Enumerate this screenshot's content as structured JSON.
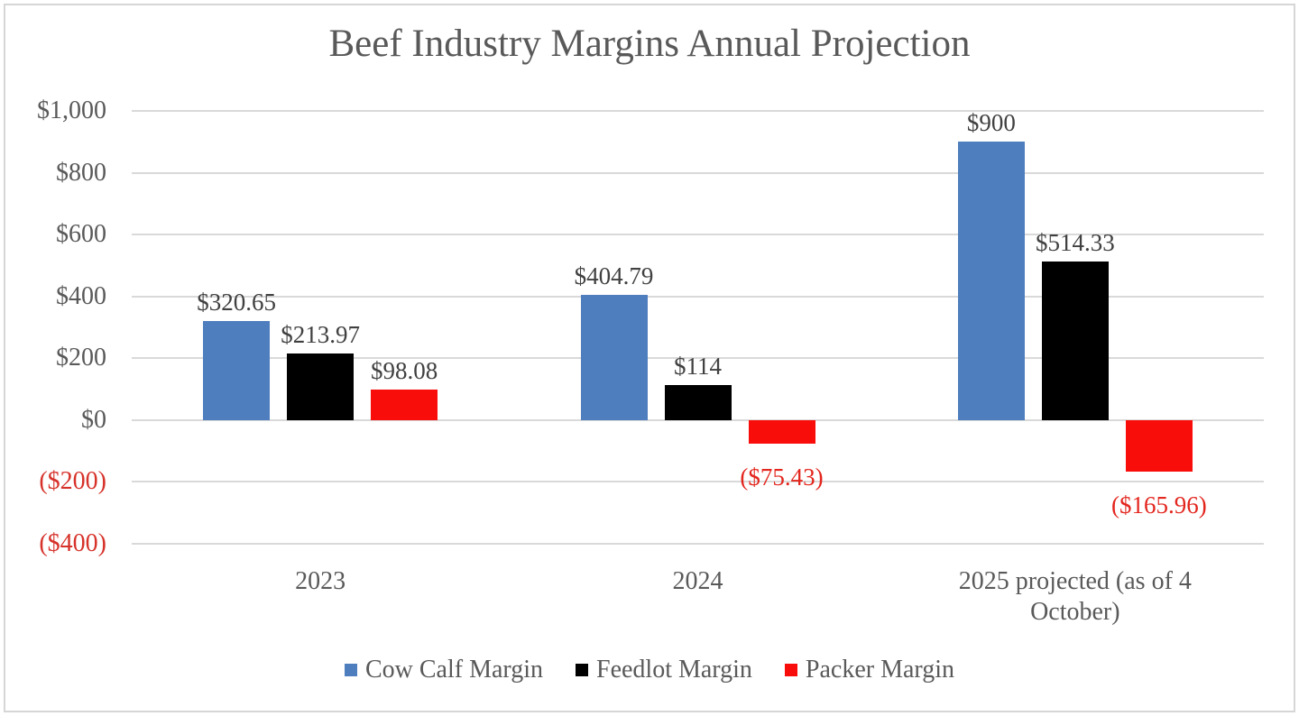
{
  "title": "Beef Industry Margins Annual Projection",
  "colors": {
    "title_text": "#595959",
    "axis_text": "#595959",
    "negative_axis_text": "#d6322a",
    "data_label_text": "#404040",
    "negative_data_label_text": "#e3261e",
    "gridline": "#d9d9d9",
    "frame_border": "#d6d6d6",
    "cow_calf_blue": "#4e7ebd",
    "feedlot_black": "#000000",
    "packer_red": "#f90d0b"
  },
  "chart_data": {
    "type": "bar",
    "title": "Beef Industry Margins Annual Projection",
    "categories": [
      "2023",
      "2024",
      "2025 projected (as of 4 October)"
    ],
    "series": [
      {
        "name": "Cow Calf Margin",
        "color": "#4e7ebd",
        "values": [
          320.65,
          404.79,
          900
        ],
        "data_labels": [
          "$320.65",
          "$404.79",
          "$900"
        ]
      },
      {
        "name": "Feedlot Margin",
        "color": "#000000",
        "values": [
          213.97,
          114,
          514.33
        ],
        "data_labels": [
          "$213.97",
          "$114",
          "$514.33"
        ]
      },
      {
        "name": "Packer Margin",
        "color": "#f90d0b",
        "values": [
          98.08,
          -75.43,
          -165.96
        ],
        "data_labels": [
          "$98.08",
          "($75.43)",
          "($165.96)"
        ]
      }
    ],
    "y_axis": {
      "min": -400,
      "max": 1000,
      "step": 200,
      "tick_labels": [
        "$1,000",
        "$800",
        "$600",
        "$400",
        "$200",
        "$0",
        "($200)",
        "($400)"
      ]
    },
    "xlabel": "",
    "ylabel": "",
    "grid": true,
    "legend_position": "bottom"
  }
}
